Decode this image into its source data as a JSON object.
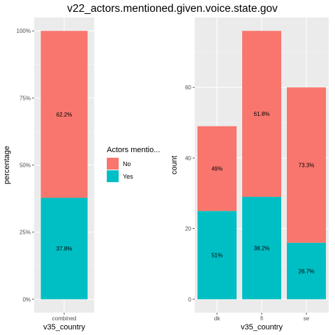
{
  "title": "v22_actors.mentioned.given.voice.state.gov",
  "legend": {
    "title": "Actors mentio...",
    "placement": "center",
    "items": [
      {
        "label": "No",
        "color": "#F8766D"
      },
      {
        "label": "Yes",
        "color": "#00BFC4"
      }
    ]
  },
  "chart_data": [
    {
      "type": "bar",
      "stacked": true,
      "xlabel": "v35_country",
      "ylabel": "percentage",
      "categories": [
        "combined"
      ],
      "ylim": [
        0,
        1
      ],
      "yticks": [
        0,
        0.25,
        0.5,
        0.75,
        1
      ],
      "ytick_labels": [
        "0%",
        "25%",
        "50%",
        "75%",
        "100%"
      ],
      "series": [
        {
          "name": "Yes",
          "color": "#00BFC4",
          "values": [
            0.378
          ],
          "labels": [
            "37.8%"
          ]
        },
        {
          "name": "No",
          "color": "#F8766D",
          "values": [
            0.622
          ],
          "labels": [
            "62.2%"
          ]
        }
      ],
      "grid": true
    },
    {
      "type": "bar",
      "stacked": true,
      "xlabel": "v35_country",
      "ylabel": "count",
      "categories": [
        "dk",
        "fi",
        "se"
      ],
      "ylim": [
        0,
        80
      ],
      "yticks": [
        0,
        20,
        40,
        60
      ],
      "ytick_labels": [
        "0",
        "20",
        "40",
        "60"
      ],
      "series": [
        {
          "name": "Yes",
          "color": "#00BFC4",
          "values": [
            25,
            29,
            16
          ],
          "labels": [
            "51%",
            "38.2%",
            "26.7%"
          ]
        },
        {
          "name": "No",
          "color": "#F8766D",
          "values": [
            24,
            47,
            44
          ],
          "labels": [
            "49%",
            "61.8%",
            "73.3%"
          ]
        }
      ],
      "grid": true
    }
  ]
}
